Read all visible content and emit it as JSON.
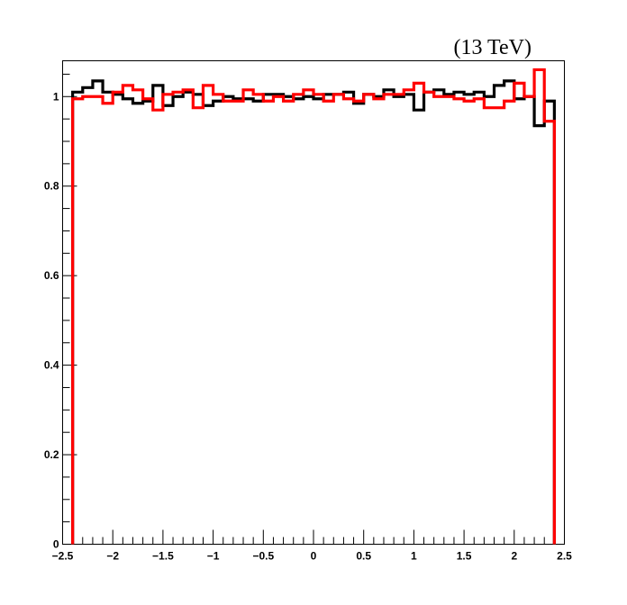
{
  "header_label": "(13 TeV)",
  "chart_data": {
    "type": "line",
    "style": "step-histogram",
    "title": "",
    "xlabel": "",
    "ylabel": "",
    "xlim": [
      -2.5,
      2.5
    ],
    "ylim": [
      0,
      1.08
    ],
    "x_ticks": [
      -2.5,
      -2,
      -1.5,
      -1,
      -0.5,
      0,
      0.5,
      1,
      1.5,
      2,
      2.5
    ],
    "x_tick_labels": [
      "−2.5",
      "−2",
      "−1.5",
      "−1",
      "−0.5",
      "0",
      "0.5",
      "1",
      "1.5",
      "2",
      "2.5"
    ],
    "y_ticks": [
      0,
      0.2,
      0.4,
      0.6,
      0.8,
      1
    ],
    "y_tick_labels": [
      "0",
      "0.2",
      "0.4",
      "0.6",
      "0.8",
      "1"
    ],
    "x_minor_step": 0.1,
    "y_minor_step": 0.05,
    "grid": false,
    "bin_edges": [
      -2.4,
      -2.3,
      -2.2,
      -2.1,
      -2.0,
      -1.9,
      -1.8,
      -1.7,
      -1.6,
      -1.5,
      -1.4,
      -1.3,
      -1.2,
      -1.1,
      -1.0,
      -0.9,
      -0.8,
      -0.7,
      -0.6,
      -0.5,
      -0.4,
      -0.3,
      -0.2,
      -0.1,
      0.0,
      0.1,
      0.2,
      0.3,
      0.4,
      0.5,
      0.6,
      0.7,
      0.8,
      0.9,
      1.0,
      1.1,
      1.2,
      1.3,
      1.4,
      1.5,
      1.6,
      1.7,
      1.8,
      1.9,
      2.0,
      2.1,
      2.2,
      2.3,
      2.4
    ],
    "series": [
      {
        "color": "#000000",
        "values": [
          1.01,
          1.02,
          1.035,
          1.01,
          1.005,
          0.995,
          0.985,
          0.99,
          1.025,
          0.98,
          1.0,
          1.01,
          1.005,
          0.98,
          0.99,
          1.0,
          0.995,
          0.995,
          0.99,
          1.005,
          1.005,
          1.0,
          0.995,
          1.0,
          0.995,
          1.005,
          1.005,
          1.01,
          0.985,
          1.005,
          1.0,
          1.015,
          1.0,
          1.005,
          0.97,
          1.01,
          1.015,
          1.005,
          1.01,
          1.005,
          1.01,
          1.0,
          1.025,
          1.035,
          0.995,
          1.0,
          0.935,
          0.99
        ]
      },
      {
        "color": "#ff0000",
        "values": [
          0.995,
          1.0,
          1.0,
          0.985,
          1.01,
          1.025,
          1.015,
          0.995,
          0.97,
          1.005,
          1.01,
          1.015,
          0.975,
          1.025,
          1.005,
          0.99,
          0.99,
          1.015,
          1.005,
          0.99,
          1.0,
          0.99,
          1.005,
          1.015,
          1.005,
          0.99,
          1.005,
          0.995,
          0.99,
          1.005,
          0.995,
          1.005,
          1.005,
          1.015,
          1.03,
          1.01,
          1.0,
          1.0,
          0.995,
          0.99,
          0.995,
          0.975,
          0.975,
          0.99,
          1.03,
          1.0,
          1.06,
          0.945
        ]
      }
    ]
  }
}
